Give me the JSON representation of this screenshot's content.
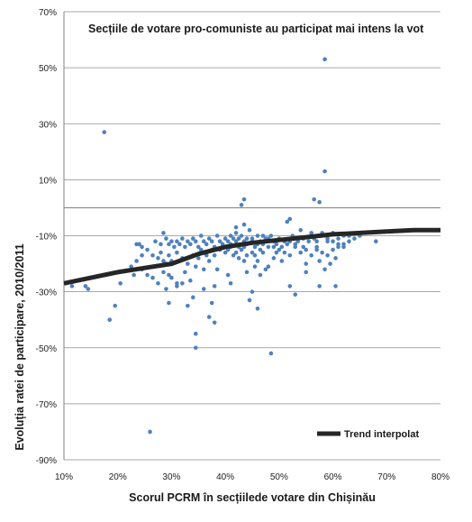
{
  "chart_data": {
    "type": "scatter",
    "title": "Secțiile de votare pro-comuniste au participat mai intens la vot",
    "xlabel": "Scorul PCRM în secțiilede votare din Chișinău",
    "ylabel": "Evoluția ratei de participare, 2010/2011",
    "xlim": [
      0.1,
      0.8
    ],
    "ylim": [
      -0.9,
      0.7
    ],
    "x_ticks": [
      "10%",
      "20%",
      "30%",
      "40%",
      "50%",
      "60%",
      "70%",
      "80%"
    ],
    "y_ticks": [
      "70%",
      "50%",
      "30%",
      "10%",
      "-10%",
      "-30%",
      "-50%",
      "-70%",
      "-90%"
    ],
    "x_tick_values": [
      0.1,
      0.2,
      0.3,
      0.4,
      0.5,
      0.6,
      0.7,
      0.8
    ],
    "y_tick_values": [
      0.7,
      0.5,
      0.3,
      0.1,
      -0.1,
      -0.3,
      -0.5,
      -0.7,
      -0.9
    ],
    "grid": {
      "horizontal": true,
      "vertical": false
    },
    "legend_position": "bottom-right",
    "colors": {
      "points": "#4f81bd",
      "trend": "#262626"
    },
    "series": [
      {
        "kind": "scatter",
        "points": [
          [
            0.175,
            0.27
          ],
          [
            0.585,
            0.53
          ],
          [
            0.585,
            0.13
          ],
          [
            0.435,
            0.03
          ],
          [
            0.565,
            0.03
          ],
          [
            0.575,
            0.02
          ],
          [
            0.43,
            0.01
          ],
          [
            0.52,
            -0.04
          ],
          [
            0.515,
            -0.05
          ],
          [
            0.42,
            -0.07
          ],
          [
            0.435,
            -0.06
          ],
          [
            0.445,
            -0.08
          ],
          [
            0.54,
            -0.08
          ],
          [
            0.56,
            -0.09
          ],
          [
            0.58,
            -0.09
          ],
          [
            0.6,
            -0.09
          ],
          [
            0.65,
            -0.1
          ],
          [
            0.68,
            -0.12
          ],
          [
            0.64,
            -0.11
          ],
          [
            0.62,
            -0.1
          ],
          [
            0.61,
            -0.13
          ],
          [
            0.59,
            -0.12
          ],
          [
            0.57,
            -0.14
          ],
          [
            0.555,
            -0.12
          ],
          [
            0.545,
            -0.11
          ],
          [
            0.53,
            -0.13
          ],
          [
            0.525,
            -0.1
          ],
          [
            0.51,
            -0.12
          ],
          [
            0.5,
            -0.11
          ],
          [
            0.495,
            -0.13
          ],
          [
            0.49,
            -0.12
          ],
          [
            0.485,
            -0.1
          ],
          [
            0.48,
            -0.14
          ],
          [
            0.475,
            -0.11
          ],
          [
            0.47,
            -0.13
          ],
          [
            0.465,
            -0.12
          ],
          [
            0.46,
            -0.1
          ],
          [
            0.455,
            -0.14
          ],
          [
            0.45,
            -0.11
          ],
          [
            0.44,
            -0.13
          ],
          [
            0.435,
            -0.12
          ],
          [
            0.43,
            -0.1
          ],
          [
            0.425,
            -0.14
          ],
          [
            0.42,
            -0.12
          ],
          [
            0.415,
            -0.11
          ],
          [
            0.41,
            -0.13
          ],
          [
            0.405,
            -0.12
          ],
          [
            0.4,
            -0.11
          ],
          [
            0.395,
            -0.13
          ],
          [
            0.39,
            -0.12
          ],
          [
            0.385,
            -0.1
          ],
          [
            0.38,
            -0.14
          ],
          [
            0.375,
            -0.12
          ],
          [
            0.37,
            -0.11
          ],
          [
            0.365,
            -0.13
          ],
          [
            0.36,
            -0.12
          ],
          [
            0.355,
            -0.1
          ],
          [
            0.35,
            -0.14
          ],
          [
            0.345,
            -0.12
          ],
          [
            0.34,
            -0.11
          ],
          [
            0.335,
            -0.13
          ],
          [
            0.33,
            -0.12
          ],
          [
            0.325,
            -0.14
          ],
          [
            0.32,
            -0.11
          ],
          [
            0.315,
            -0.13
          ],
          [
            0.31,
            -0.12
          ],
          [
            0.305,
            -0.14
          ],
          [
            0.3,
            -0.12
          ],
          [
            0.295,
            -0.13
          ],
          [
            0.29,
            -0.11
          ],
          [
            0.285,
            -0.09
          ],
          [
            0.28,
            -0.13
          ],
          [
            0.295,
            -0.17
          ],
          [
            0.3,
            -0.19
          ],
          [
            0.31,
            -0.16
          ],
          [
            0.32,
            -0.18
          ],
          [
            0.33,
            -0.2
          ],
          [
            0.34,
            -0.17
          ],
          [
            0.345,
            -0.21
          ],
          [
            0.35,
            -0.18
          ],
          [
            0.36,
            -0.16
          ],
          [
            0.37,
            -0.19
          ],
          [
            0.38,
            -0.17
          ],
          [
            0.39,
            -0.15
          ],
          [
            0.4,
            -0.16
          ],
          [
            0.41,
            -0.14
          ],
          [
            0.42,
            -0.16
          ],
          [
            0.43,
            -0.15
          ],
          [
            0.44,
            -0.17
          ],
          [
            0.45,
            -0.16
          ],
          [
            0.46,
            -0.19
          ],
          [
            0.47,
            -0.16
          ],
          [
            0.48,
            -0.21
          ],
          [
            0.49,
            -0.18
          ],
          [
            0.5,
            -0.15
          ],
          [
            0.51,
            -0.16
          ],
          [
            0.52,
            -0.17
          ],
          [
            0.53,
            -0.14
          ],
          [
            0.54,
            -0.16
          ],
          [
            0.55,
            -0.15
          ],
          [
            0.56,
            -0.17
          ],
          [
            0.57,
            -0.15
          ],
          [
            0.58,
            -0.16
          ],
          [
            0.59,
            -0.17
          ],
          [
            0.6,
            -0.15
          ],
          [
            0.61,
            -0.14
          ],
          [
            0.62,
            -0.13
          ],
          [
            0.63,
            -0.12
          ],
          [
            0.575,
            -0.19
          ],
          [
            0.595,
            -0.2
          ],
          [
            0.605,
            -0.18
          ],
          [
            0.585,
            -0.22
          ],
          [
            0.55,
            -0.2
          ],
          [
            0.44,
            -0.23
          ],
          [
            0.455,
            -0.21
          ],
          [
            0.465,
            -0.24
          ],
          [
            0.475,
            -0.22
          ],
          [
            0.405,
            -0.24
          ],
          [
            0.385,
            -0.22
          ],
          [
            0.36,
            -0.22
          ],
          [
            0.335,
            -0.26
          ],
          [
            0.325,
            -0.23
          ],
          [
            0.31,
            -0.27
          ],
          [
            0.3,
            -0.25
          ],
          [
            0.295,
            -0.24
          ],
          [
            0.285,
            -0.23
          ],
          [
            0.275,
            -0.27
          ],
          [
            0.265,
            -0.25
          ],
          [
            0.255,
            -0.24
          ],
          [
            0.245,
            -0.22
          ],
          [
            0.23,
            -0.24
          ],
          [
            0.225,
            -0.21
          ],
          [
            0.275,
            -0.18
          ],
          [
            0.285,
            -0.19
          ],
          [
            0.29,
            -0.2
          ],
          [
            0.28,
            -0.16
          ],
          [
            0.265,
            -0.17
          ],
          [
            0.255,
            -0.15
          ],
          [
            0.245,
            -0.14
          ],
          [
            0.235,
            -0.13
          ],
          [
            0.24,
            -0.13
          ],
          [
            0.27,
            -0.12
          ],
          [
            0.245,
            -0.17
          ],
          [
            0.235,
            -0.19
          ],
          [
            0.14,
            -0.28
          ],
          [
            0.145,
            -0.29
          ],
          [
            0.115,
            -0.28
          ],
          [
            0.205,
            -0.27
          ],
          [
            0.195,
            -0.35
          ],
          [
            0.185,
            -0.4
          ],
          [
            0.29,
            -0.29
          ],
          [
            0.31,
            -0.28
          ],
          [
            0.32,
            -0.27
          ],
          [
            0.295,
            -0.34
          ],
          [
            0.33,
            -0.35
          ],
          [
            0.34,
            -0.32
          ],
          [
            0.36,
            -0.29
          ],
          [
            0.375,
            -0.34
          ],
          [
            0.38,
            -0.28
          ],
          [
            0.41,
            -0.27
          ],
          [
            0.45,
            -0.3
          ],
          [
            0.46,
            -0.36
          ],
          [
            0.445,
            -0.33
          ],
          [
            0.38,
            -0.41
          ],
          [
            0.37,
            -0.39
          ],
          [
            0.345,
            -0.45
          ],
          [
            0.345,
            -0.5
          ],
          [
            0.485,
            -0.52
          ],
          [
            0.575,
            -0.28
          ],
          [
            0.605,
            -0.28
          ],
          [
            0.26,
            -0.8
          ],
          [
            0.53,
            -0.31
          ],
          [
            0.52,
            -0.28
          ],
          [
            0.55,
            -0.23
          ],
          [
            0.57,
            -0.12
          ],
          [
            0.59,
            -0.11
          ],
          [
            0.61,
            -0.11
          ],
          [
            0.6,
            -0.12
          ],
          [
            0.62,
            -0.14
          ],
          [
            0.63,
            -0.1
          ],
          [
            0.47,
            -0.1
          ],
          [
            0.475,
            -0.12
          ],
          [
            0.49,
            -0.14
          ],
          [
            0.52,
            -0.12
          ],
          [
            0.53,
            -0.11
          ],
          [
            0.41,
            -0.1
          ],
          [
            0.42,
            -0.09
          ],
          [
            0.44,
            -0.11
          ],
          [
            0.45,
            -0.12
          ],
          [
            0.46,
            -0.13
          ],
          [
            0.48,
            -0.11
          ],
          [
            0.505,
            -0.14
          ],
          [
            0.515,
            -0.13
          ],
          [
            0.535,
            -0.12
          ],
          [
            0.545,
            -0.14
          ],
          [
            0.565,
            -0.11
          ],
          [
            0.435,
            -0.14
          ],
          [
            0.425,
            -0.11
          ],
          [
            0.395,
            -0.14
          ],
          [
            0.405,
            -0.15
          ],
          [
            0.355,
            -0.15
          ],
          [
            0.365,
            -0.17
          ],
          [
            0.375,
            -0.15
          ],
          [
            0.415,
            -0.17
          ],
          [
            0.425,
            -0.18
          ],
          [
            0.435,
            -0.19
          ],
          [
            0.455,
            -0.17
          ],
          [
            0.465,
            -0.15
          ],
          [
            0.495,
            -0.16
          ],
          [
            0.505,
            -0.19
          ]
        ]
      },
      {
        "kind": "line",
        "name": "Trend interpolat",
        "points": [
          [
            0.1,
            -0.27
          ],
          [
            0.15,
            -0.25
          ],
          [
            0.2,
            -0.23
          ],
          [
            0.25,
            -0.215
          ],
          [
            0.3,
            -0.2
          ],
          [
            0.35,
            -0.165
          ],
          [
            0.4,
            -0.14
          ],
          [
            0.45,
            -0.125
          ],
          [
            0.5,
            -0.115
          ],
          [
            0.55,
            -0.105
          ],
          [
            0.6,
            -0.095
          ],
          [
            0.65,
            -0.09
          ],
          [
            0.7,
            -0.085
          ],
          [
            0.75,
            -0.08
          ],
          [
            0.8,
            -0.08
          ]
        ]
      }
    ]
  }
}
